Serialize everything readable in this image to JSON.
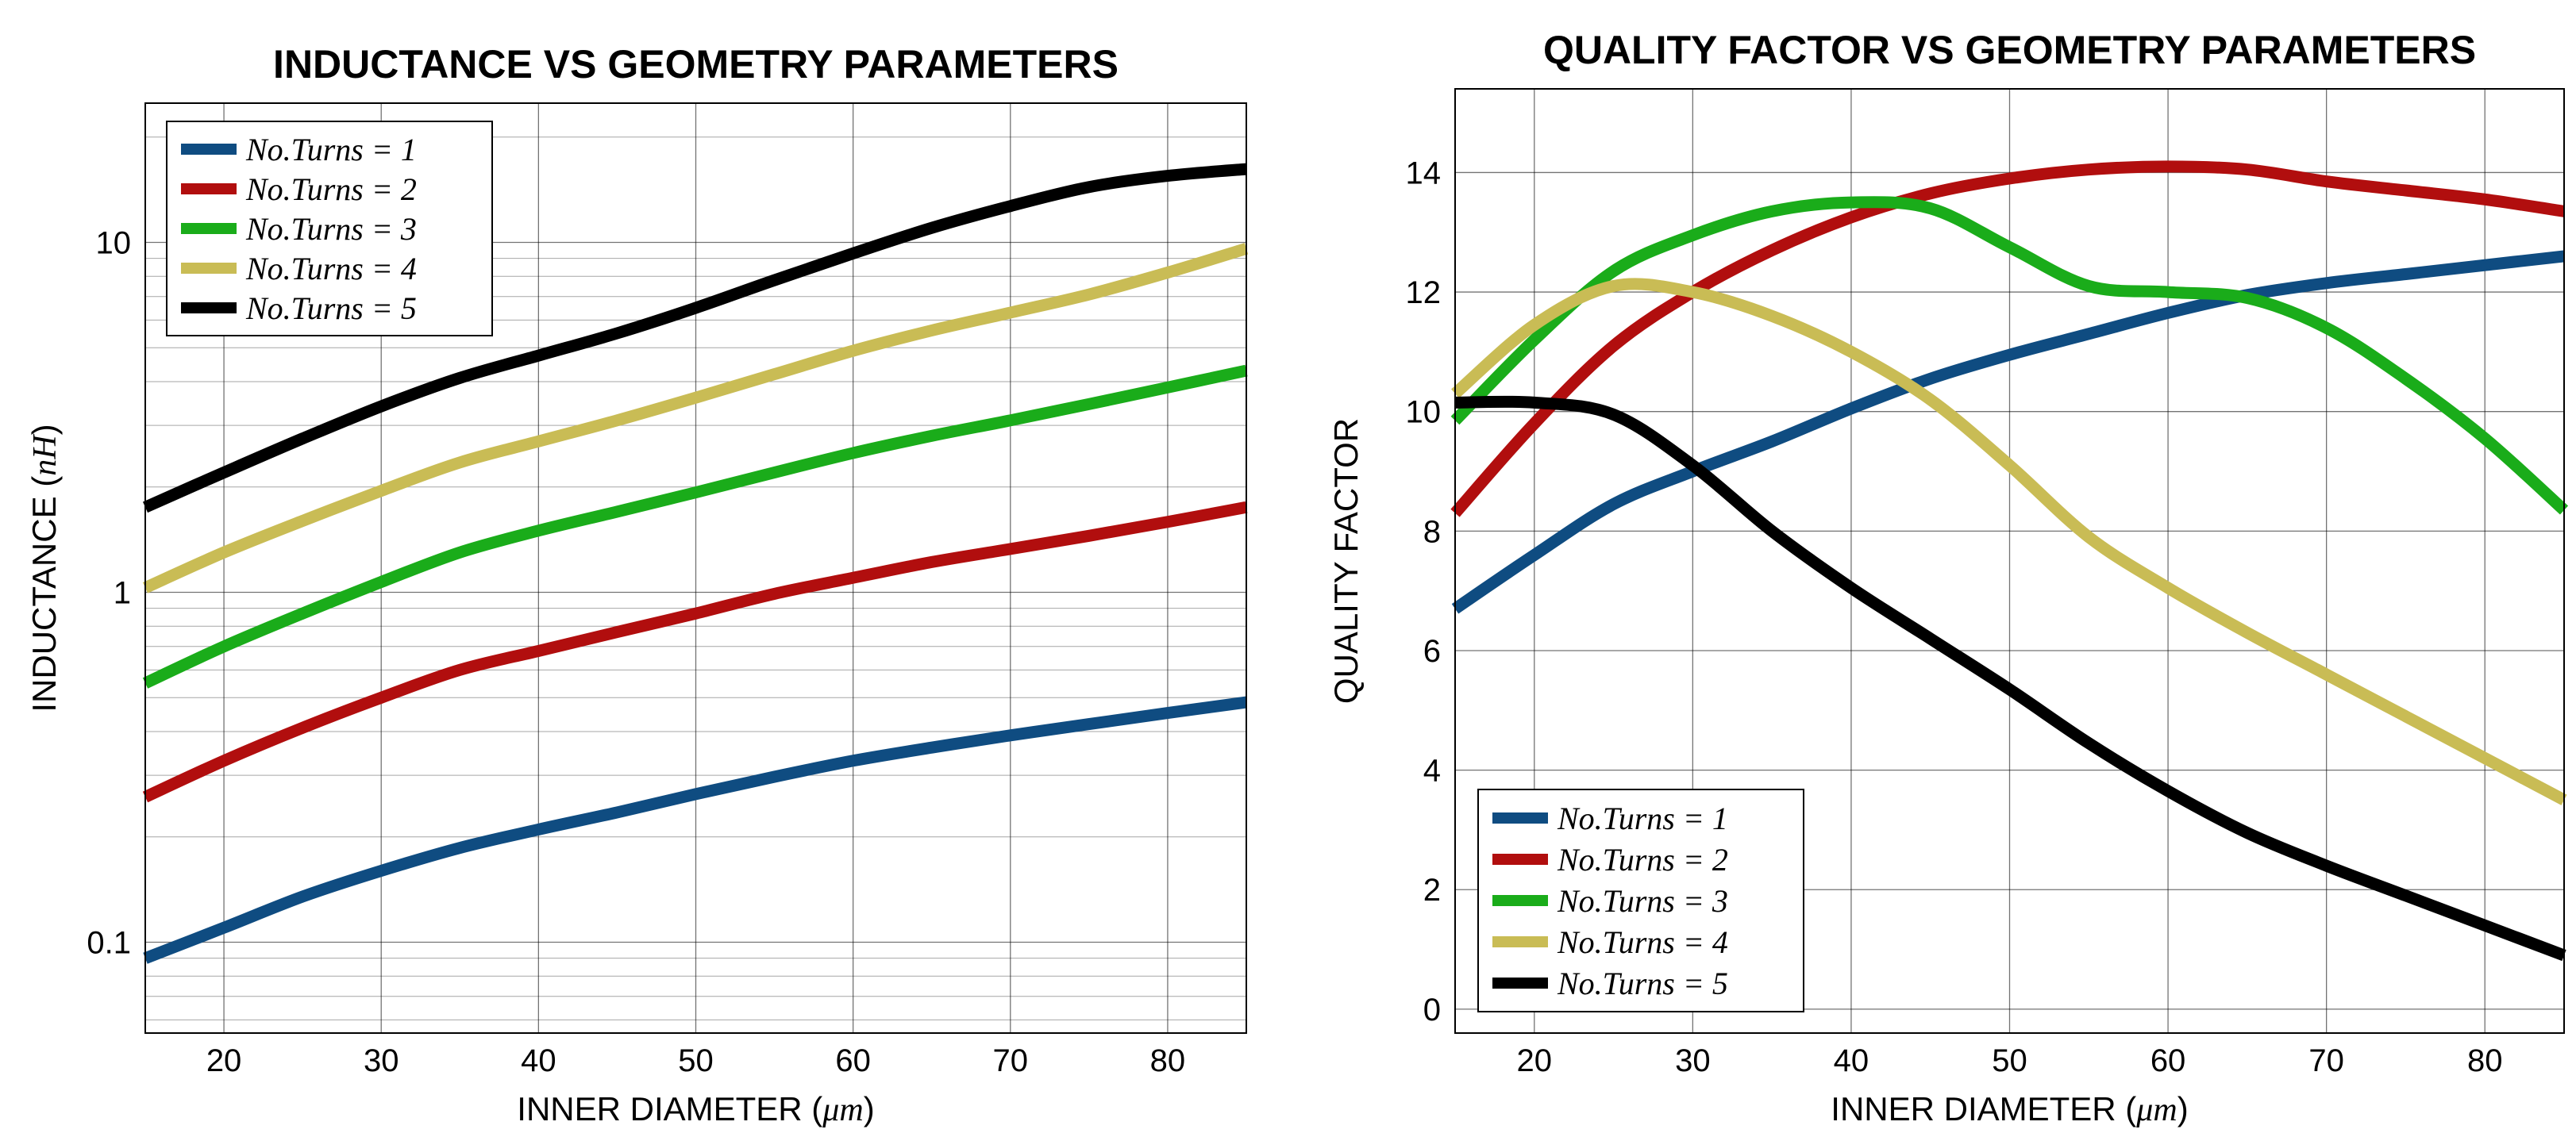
{
  "chart_data": [
    {
      "type": "line",
      "title": "INDUCTANCE VS GEOMETRY PARAMETERS",
      "xlabel": "INNER DIAMETER (",
      "xlabel_unit": "μm",
      "xlabel_close": ")",
      "ylabel": "INDUCTANCE (",
      "ylabel_unit": "nH",
      "ylabel_close": ")",
      "yscale": "log",
      "xlim": [
        15,
        85
      ],
      "ylim": [
        0.055,
        25
      ],
      "xticks": [
        20,
        30,
        40,
        50,
        60,
        70,
        80
      ],
      "xtick_labels": [
        "20",
        "30",
        "40",
        "50",
        "60",
        "70",
        "80"
      ],
      "yticks": [
        0.1,
        1,
        10
      ],
      "ytick_labels": [
        "0.1",
        "1",
        "10"
      ],
      "grid": true,
      "legend_position": "top-left",
      "x": [
        15,
        20,
        25,
        30,
        35,
        40,
        45,
        50,
        55,
        60,
        65,
        70,
        75,
        80,
        85
      ],
      "series": [
        {
          "name": "No.Turns = 1",
          "color": "#0f4c81",
          "values": [
            0.09,
            0.11,
            0.135,
            0.16,
            0.186,
            0.21,
            0.235,
            0.265,
            0.297,
            0.33,
            0.36,
            0.39,
            0.42,
            0.452,
            0.485
          ]
        },
        {
          "name": "No.Turns = 2",
          "color": "#b10e0e",
          "values": [
            0.26,
            0.33,
            0.41,
            0.5,
            0.6,
            0.68,
            0.77,
            0.87,
            0.99,
            1.1,
            1.22,
            1.33,
            1.45,
            1.59,
            1.75
          ]
        },
        {
          "name": "No.Turns = 3",
          "color": "#1aac1a",
          "values": [
            0.55,
            0.7,
            0.87,
            1.07,
            1.3,
            1.5,
            1.7,
            1.93,
            2.2,
            2.5,
            2.8,
            3.1,
            3.45,
            3.85,
            4.3
          ]
        },
        {
          "name": "No.Turns = 4",
          "color": "#c9bc55",
          "values": [
            1.03,
            1.3,
            1.6,
            1.95,
            2.35,
            2.7,
            3.1,
            3.6,
            4.2,
            4.9,
            5.6,
            6.3,
            7.1,
            8.2,
            9.6
          ]
        },
        {
          "name": "No.Turns = 5",
          "color": "#000000",
          "values": [
            1.75,
            2.2,
            2.75,
            3.4,
            4.1,
            4.75,
            5.5,
            6.5,
            7.8,
            9.3,
            11.0,
            12.7,
            14.4,
            15.5,
            16.2
          ]
        }
      ]
    },
    {
      "type": "line",
      "title": "QUALITY FACTOR VS GEOMETRY PARAMETERS",
      "xlabel": "INNER DIAMETER (",
      "xlabel_unit": "μm",
      "xlabel_close": ")",
      "ylabel": "QUALITY FACTOR",
      "ylabel_unit": "",
      "ylabel_close": "",
      "yscale": "linear",
      "xlim": [
        15,
        85
      ],
      "ylim": [
        -0.4,
        15.4
      ],
      "xticks": [
        20,
        30,
        40,
        50,
        60,
        70,
        80
      ],
      "xtick_labels": [
        "20",
        "30",
        "40",
        "50",
        "60",
        "70",
        "80"
      ],
      "yticks": [
        0,
        2,
        4,
        6,
        8,
        10,
        12,
        14
      ],
      "ytick_labels": [
        "0",
        "2",
        "4",
        "6",
        "8",
        "10",
        "12",
        "14"
      ],
      "grid": true,
      "legend_position": "bottom-left",
      "x": [
        15,
        20,
        25,
        30,
        35,
        40,
        45,
        50,
        55,
        60,
        65,
        70,
        75,
        80,
        85
      ],
      "series": [
        {
          "name": "No.Turns = 1",
          "color": "#0f4c81",
          "values": [
            6.7,
            7.6,
            8.45,
            9.0,
            9.5,
            10.05,
            10.55,
            10.95,
            11.3,
            11.65,
            11.95,
            12.15,
            12.3,
            12.45,
            12.6
          ]
        },
        {
          "name": "No.Turns = 2",
          "color": "#b10e0e",
          "values": [
            8.3,
            9.8,
            11.1,
            12.0,
            12.7,
            13.25,
            13.65,
            13.9,
            14.05,
            14.1,
            14.05,
            13.85,
            13.7,
            13.55,
            13.35
          ]
        },
        {
          "name": "No.Turns = 3",
          "color": "#1aac1a",
          "values": [
            9.85,
            11.2,
            12.35,
            12.95,
            13.35,
            13.5,
            13.4,
            12.75,
            12.1,
            12.0,
            11.9,
            11.4,
            10.55,
            9.55,
            8.35
          ]
        },
        {
          "name": "No.Turns = 4",
          "color": "#c9bc55",
          "values": [
            10.3,
            11.45,
            12.1,
            12.0,
            11.6,
            11.0,
            10.2,
            9.1,
            7.9,
            7.05,
            6.3,
            5.6,
            4.9,
            4.2,
            3.5
          ]
        },
        {
          "name": "No.Turns = 5",
          "color": "#000000",
          "values": [
            10.15,
            10.15,
            9.95,
            9.1,
            8.0,
            7.05,
            6.2,
            5.35,
            4.45,
            3.65,
            2.95,
            2.4,
            1.9,
            1.4,
            0.9
          ]
        }
      ]
    }
  ]
}
